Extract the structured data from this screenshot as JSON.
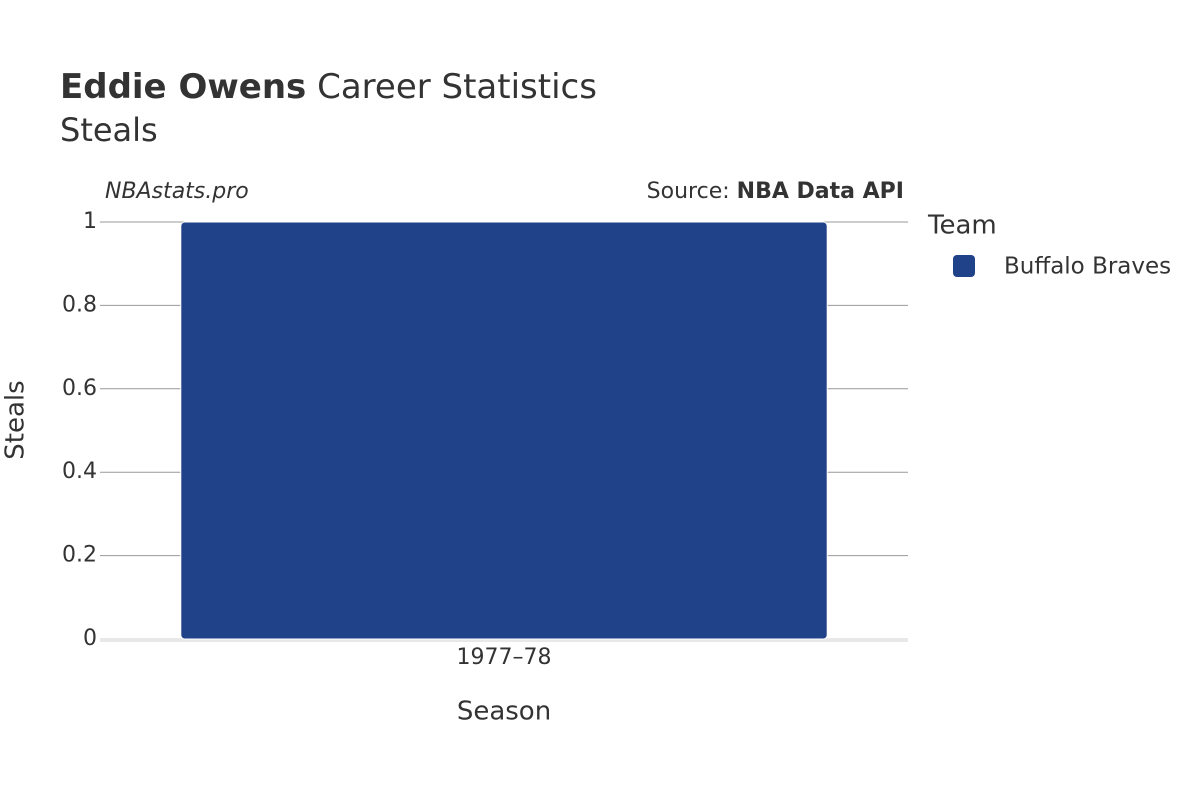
{
  "chart_data": {
    "type": "bar",
    "title_player": "Eddie Owens",
    "title": "Career Statistics",
    "subtitle": "Steals",
    "watermark": "NBAstats.pro",
    "source_label": "Source:",
    "source": "NBA Data API",
    "x_label": "Season",
    "y_label": "Steals",
    "categories": [
      "1977–78"
    ],
    "series": [
      {
        "name": "Buffalo Braves",
        "color": "#1f4289",
        "values": [
          1
        ]
      }
    ],
    "legend_title": "Team",
    "legend": "right",
    "ylim": [
      0,
      1
    ],
    "yticks": [
      0,
      0.2,
      0.4,
      0.6,
      0.8,
      1
    ],
    "grid": true
  }
}
